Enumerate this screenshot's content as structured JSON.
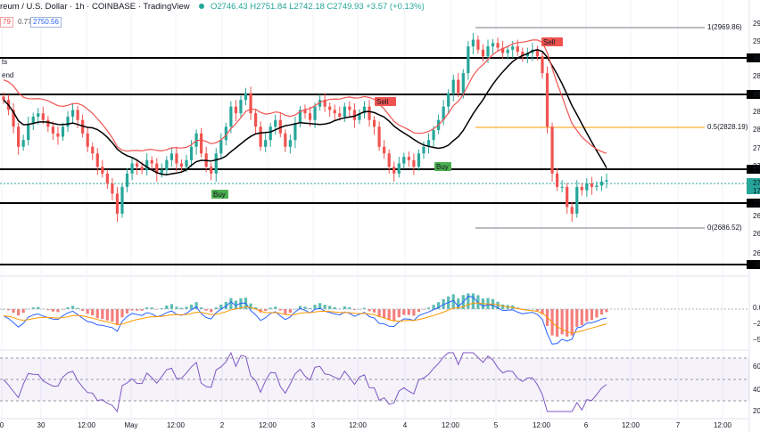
{
  "header": {
    "symbol": "reum / U.S. Dollar",
    "interval": "1h",
    "exchange": "COINBASE",
    "source": "TradingView",
    "ohlc": "O2746.43 H2751.84 L2742.18 C2749.93 +3.57 (+0.13%)",
    "box_left": "79",
    "mid_value": "0.77",
    "box_right": "2750.56"
  },
  "labels_left": {
    "line1": "ts",
    "line2": "end"
  },
  "x_ticks": [
    "0",
    "30",
    "12:00",
    "May",
    "12:00",
    "2",
    "12:00",
    "3",
    "12:00",
    "4",
    "12:00",
    "5",
    "12:00",
    "6",
    "12:00",
    "7",
    "12:00"
  ],
  "price_axis": {
    "levels": [
      "29",
      "29",
      "29",
      "28",
      "28",
      "28",
      "28",
      "27",
      "27",
      "27",
      "26",
      "26",
      "26"
    ],
    "current": [
      "27",
      "17"
    ],
    "line_tags": [
      "29",
      "28",
      "27",
      "27",
      "26"
    ]
  },
  "fib": {
    "top": "1(2969.86)",
    "mid": "0.5(2828.19)",
    "bottom": "0(2686.52)"
  },
  "signals": {
    "buy1": "Buy",
    "buy2": "Buy",
    "sell1": "Sell",
    "sell2": "Sell"
  },
  "macd_axis": [
    "0.0",
    "−2",
    "−5"
  ],
  "rsi_axis": [
    "60",
    "40",
    "20"
  ],
  "chart_data": {
    "type": "candlestick",
    "timeframe": "1h",
    "fib_levels": {
      "1": 2969.86,
      "0.5": 2828.19,
      "0": 2686.52
    },
    "last_bar": {
      "open": 2746.43,
      "high": 2751.84,
      "low": 2742.18,
      "close": 2749.93,
      "change": 3.57,
      "change_pct": 0.13
    },
    "close_path": [
      2870,
      2855,
      2830,
      2800,
      2810,
      2835,
      2845,
      2850,
      2840,
      2830,
      2820,
      2815,
      2830,
      2845,
      2855,
      2840,
      2820,
      2800,
      2790,
      2770,
      2760,
      2745,
      2730,
      2700,
      2740,
      2760,
      2775,
      2770,
      2765,
      2780,
      2775,
      2760,
      2765,
      2780,
      2790,
      2775,
      2770,
      2780,
      2800,
      2820,
      2790,
      2770,
      2760,
      2790,
      2810,
      2830,
      2860,
      2850,
      2870,
      2880,
      2850,
      2830,
      2800,
      2810,
      2830,
      2840,
      2820,
      2800,
      2810,
      2835,
      2855,
      2850,
      2840,
      2860,
      2870,
      2860,
      2855,
      2850,
      2845,
      2860,
      2855,
      2840,
      2850,
      2860,
      2840,
      2830,
      2800,
      2790,
      2770,
      2760,
      2775,
      2785,
      2780,
      2770,
      2790,
      2800,
      2810,
      2825,
      2840,
      2860,
      2880,
      2900,
      2880,
      2910,
      2950,
      2960,
      2945,
      2935,
      2950,
      2955,
      2948,
      2940,
      2945,
      2950,
      2942,
      2935,
      2940,
      2945,
      2935,
      2910,
      2830,
      2760,
      2740,
      2740,
      2710,
      2700,
      2740,
      2735,
      2745,
      2740,
      2742,
      2748,
      2750
    ],
    "macd_range": [
      -5,
      2
    ],
    "rsi_range": [
      20,
      80
    ]
  }
}
